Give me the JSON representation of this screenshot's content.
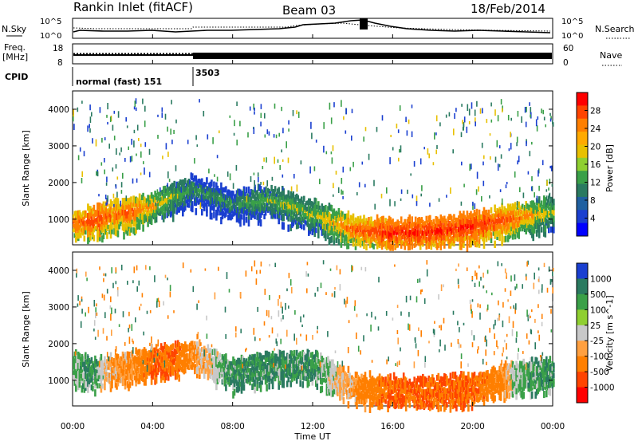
{
  "header": {
    "station": "Rankin Inlet (fitACF)",
    "beam": "Beam 03",
    "date": "18/Feb/2014"
  },
  "top_panels": {
    "nsky_label": "N.Sky",
    "nsearch_label": "N.Search",
    "noise_ticks": [
      "10^5",
      "10^0"
    ],
    "noise_ticks_right": [
      "10^5",
      "10^0"
    ],
    "freq_label_1": "Freq.",
    "freq_label_2": "[MHz]",
    "freq_ticks": [
      "18",
      "8"
    ],
    "nave_label": "Nave",
    "nave_ticks": [
      "60",
      "0"
    ],
    "cpid_label": "CPID",
    "cpid_segments": [
      {
        "label": "normal (fast) 151",
        "start_hour": 0
      },
      {
        "label": "3503",
        "start_hour": 6
      }
    ]
  },
  "power_colorbar": {
    "label": "Power [dB]",
    "ticks": [
      "28",
      "24",
      "20",
      "16",
      "12",
      "8",
      "4"
    ],
    "colors": [
      "#ff0000",
      "#ff4400",
      "#ff7f00",
      "#ffaa00",
      "#e8c000",
      "#8fcf30",
      "#3aa048",
      "#2a7a60",
      "#2060a0",
      "#1a3fd0",
      "#0000ff"
    ]
  },
  "velocity_colorbar": {
    "label": "Velocity [m s^-1]",
    "ticks": [
      "1000",
      "500",
      "100",
      "25",
      "-25",
      "-100",
      "-500",
      "-1000"
    ],
    "colors": [
      "#1a3fd0",
      "#2a7a60",
      "#3aa048",
      "#8fcf30",
      "#c8c8c8",
      "#ffa040",
      "#ff7f00",
      "#ff4400",
      "#ff0000"
    ]
  },
  "chart_data": {
    "type": "heatmap",
    "x_axis": {
      "label": "Time UT",
      "ticks": [
        "00:00",
        "04:00",
        "08:00",
        "12:00",
        "16:00",
        "20:00",
        "00:00"
      ],
      "range_hours": [
        0,
        24
      ]
    },
    "y_axis": {
      "label": "Slant Range [km]",
      "ticks": [
        "1000",
        "2000",
        "3000",
        "4000"
      ],
      "range": [
        300,
        4500
      ]
    },
    "panels": [
      {
        "name": "Power",
        "unit": "dB",
        "range": [
          0,
          30
        ],
        "main_band": [
          {
            "hour": 0.0,
            "range_km": 950,
            "value": 24
          },
          {
            "hour": 1.0,
            "range_km": 1050,
            "value": 26
          },
          {
            "hour": 2.0,
            "range_km": 1200,
            "value": 24
          },
          {
            "hour": 3.0,
            "range_km": 1300,
            "value": 24
          },
          {
            "hour": 4.0,
            "range_km": 1450,
            "value": 20
          },
          {
            "hour": 5.0,
            "range_km": 1700,
            "value": 16
          },
          {
            "hour": 6.0,
            "range_km": 1900,
            "value": 12
          },
          {
            "hour": 8.0,
            "range_km": 1500,
            "value": 12
          },
          {
            "hour": 10.0,
            "range_km": 1600,
            "value": 16
          },
          {
            "hour": 12.0,
            "range_km": 1200,
            "value": 16
          },
          {
            "hour": 14.0,
            "range_km": 800,
            "value": 24
          },
          {
            "hour": 16.0,
            "range_km": 700,
            "value": 28
          },
          {
            "hour": 18.0,
            "range_km": 750,
            "value": 28
          },
          {
            "hour": 20.0,
            "range_km": 900,
            "value": 28
          },
          {
            "hour": 22.0,
            "range_km": 1100,
            "value": 24
          },
          {
            "hour": 24.0,
            "range_km": 1300,
            "value": 16
          }
        ]
      },
      {
        "name": "Velocity",
        "unit": "m s^-1",
        "range": [
          -1000,
          1000
        ],
        "main_band": [
          {
            "hour": 0.0,
            "range_km": 1500,
            "value": 25
          },
          {
            "hour": 1.0,
            "range_km": 1300,
            "value": 100
          },
          {
            "hour": 2.0,
            "range_km": 1400,
            "value": -100
          },
          {
            "hour": 3.0,
            "range_km": 1500,
            "value": -100
          },
          {
            "hour": 4.0,
            "range_km": 1600,
            "value": -500
          },
          {
            "hour": 5.0,
            "range_km": 1700,
            "value": -500
          },
          {
            "hour": 6.0,
            "range_km": 1800,
            "value": -100
          },
          {
            "hour": 8.0,
            "range_km": 1300,
            "value": 100
          },
          {
            "hour": 10.0,
            "range_km": 1500,
            "value": 100
          },
          {
            "hour": 12.0,
            "range_km": 1500,
            "value": 100
          },
          {
            "hour": 14.0,
            "range_km": 900,
            "value": -100
          },
          {
            "hour": 16.0,
            "range_km": 800,
            "value": -500
          },
          {
            "hour": 18.0,
            "range_km": 800,
            "value": -500
          },
          {
            "hour": 20.0,
            "range_km": 900,
            "value": -500
          },
          {
            "hour": 22.0,
            "range_km": 1200,
            "value": 25
          },
          {
            "hour": 24.0,
            "range_km": 1300,
            "value": 100
          }
        ]
      }
    ]
  }
}
